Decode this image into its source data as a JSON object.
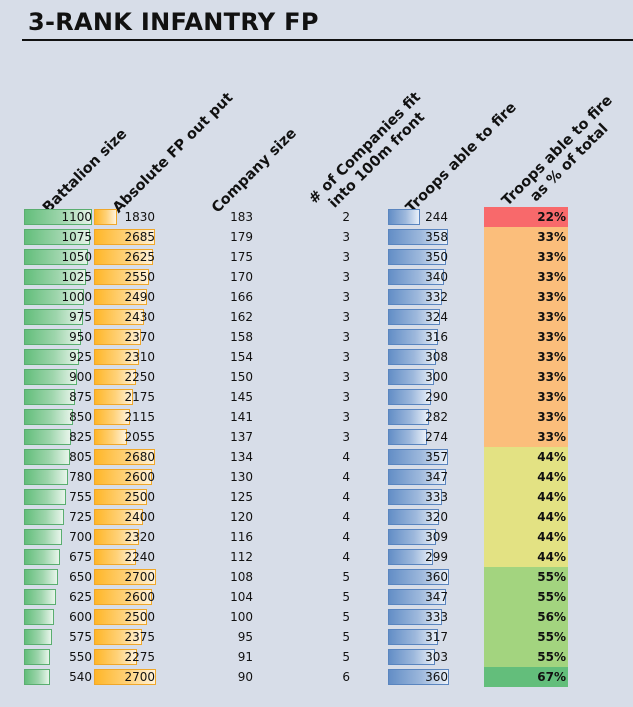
{
  "title": "3-RANK INFANTRY FP",
  "chart_data": {
    "type": "table",
    "columns": [
      "Battalion size",
      "Absolute FP out put",
      "Company size",
      "# of Companies fit",
      "into 100m front",
      "Troops able to fire",
      "Troops able to fire",
      "as % of total"
    ],
    "rows": [
      {
        "battalion": 1100,
        "fp": 1830,
        "company": 183,
        "companies": 2,
        "troops": 244,
        "pct": "22%",
        "pct_value": 22
      },
      {
        "battalion": 1075,
        "fp": 2685,
        "company": 179,
        "companies": 3,
        "troops": 358,
        "pct": "33%",
        "pct_value": 33
      },
      {
        "battalion": 1050,
        "fp": 2625,
        "company": 175,
        "companies": 3,
        "troops": 350,
        "pct": "33%",
        "pct_value": 33
      },
      {
        "battalion": 1025,
        "fp": 2550,
        "company": 170,
        "companies": 3,
        "troops": 340,
        "pct": "33%",
        "pct_value": 33
      },
      {
        "battalion": 1000,
        "fp": 2490,
        "company": 166,
        "companies": 3,
        "troops": 332,
        "pct": "33%",
        "pct_value": 33
      },
      {
        "battalion": 975,
        "fp": 2430,
        "company": 162,
        "companies": 3,
        "troops": 324,
        "pct": "33%",
        "pct_value": 33
      },
      {
        "battalion": 950,
        "fp": 2370,
        "company": 158,
        "companies": 3,
        "troops": 316,
        "pct": "33%",
        "pct_value": 33
      },
      {
        "battalion": 925,
        "fp": 2310,
        "company": 154,
        "companies": 3,
        "troops": 308,
        "pct": "33%",
        "pct_value": 33
      },
      {
        "battalion": 900,
        "fp": 2250,
        "company": 150,
        "companies": 3,
        "troops": 300,
        "pct": "33%",
        "pct_value": 33
      },
      {
        "battalion": 875,
        "fp": 2175,
        "company": 145,
        "companies": 3,
        "troops": 290,
        "pct": "33%",
        "pct_value": 33
      },
      {
        "battalion": 850,
        "fp": 2115,
        "company": 141,
        "companies": 3,
        "troops": 282,
        "pct": "33%",
        "pct_value": 33
      },
      {
        "battalion": 825,
        "fp": 2055,
        "company": 137,
        "companies": 3,
        "troops": 274,
        "pct": "33%",
        "pct_value": 33
      },
      {
        "battalion": 805,
        "fp": 2680,
        "company": 134,
        "companies": 4,
        "troops": 357,
        "pct": "44%",
        "pct_value": 44
      },
      {
        "battalion": 780,
        "fp": 2600,
        "company": 130,
        "companies": 4,
        "troops": 347,
        "pct": "44%",
        "pct_value": 44
      },
      {
        "battalion": 755,
        "fp": 2500,
        "company": 125,
        "companies": 4,
        "troops": 333,
        "pct": "44%",
        "pct_value": 44
      },
      {
        "battalion": 725,
        "fp": 2400,
        "company": 120,
        "companies": 4,
        "troops": 320,
        "pct": "44%",
        "pct_value": 44
      },
      {
        "battalion": 700,
        "fp": 2320,
        "company": 116,
        "companies": 4,
        "troops": 309,
        "pct": "44%",
        "pct_value": 44
      },
      {
        "battalion": 675,
        "fp": 2240,
        "company": 112,
        "companies": 4,
        "troops": 299,
        "pct": "44%",
        "pct_value": 44
      },
      {
        "battalion": 650,
        "fp": 2700,
        "company": 108,
        "companies": 5,
        "troops": 360,
        "pct": "55%",
        "pct_value": 55
      },
      {
        "battalion": 625,
        "fp": 2600,
        "company": 104,
        "companies": 5,
        "troops": 347,
        "pct": "55%",
        "pct_value": 55
      },
      {
        "battalion": 600,
        "fp": 2500,
        "company": 100,
        "companies": 5,
        "troops": 333,
        "pct": "56%",
        "pct_value": 56
      },
      {
        "battalion": 575,
        "fp": 2375,
        "company": 95,
        "companies": 5,
        "troops": 317,
        "pct": "55%",
        "pct_value": 55
      },
      {
        "battalion": 550,
        "fp": 2275,
        "company": 91,
        "companies": 5,
        "troops": 303,
        "pct": "55%",
        "pct_value": 55
      },
      {
        "battalion": 540,
        "fp": 2700,
        "company": 90,
        "companies": 6,
        "troops": 360,
        "pct": "67%",
        "pct_value": 67
      }
    ],
    "bar_min": {
      "battalion": 200,
      "fp": 1300,
      "troops": 120
    },
    "bar_max": {
      "battalion": 1100,
      "fp": 2700,
      "troops": 360
    },
    "pct_colors": {
      "22": "#f8696b",
      "33": "#fbbe7b",
      "44": "#e3e283",
      "55": "#a3d47f",
      "56": "#a3d47f",
      "67": "#63be7b"
    }
  }
}
